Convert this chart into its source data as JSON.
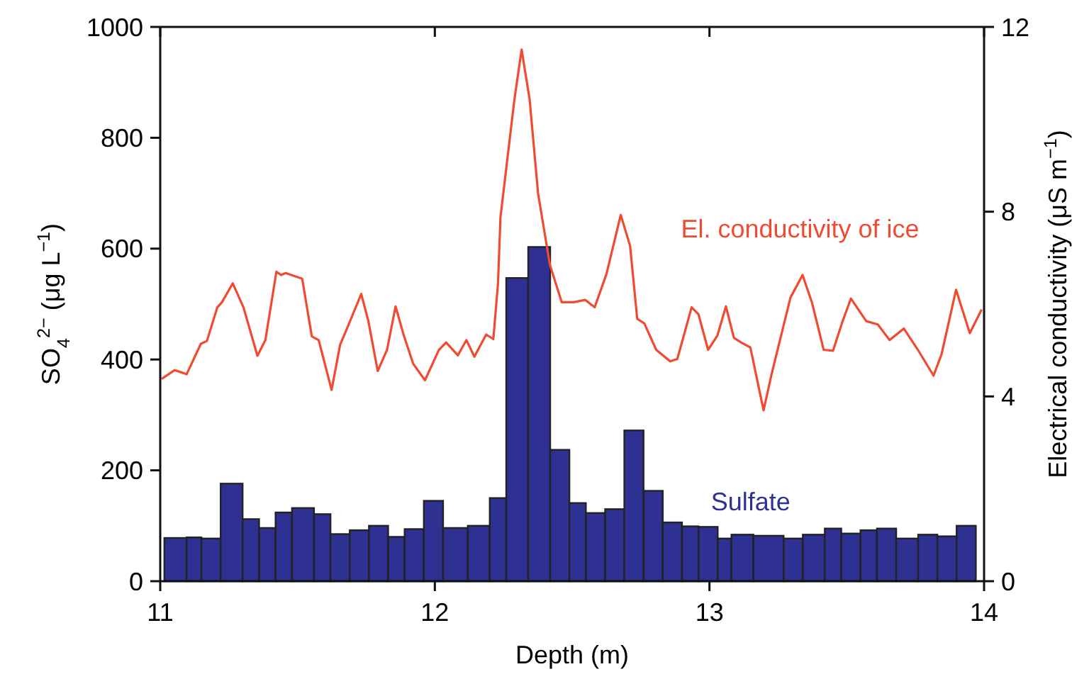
{
  "chart_data": {
    "type": "histogram",
    "xlabel": "Depth (m)",
    "ylabel": "SO$_{4}$$^{2−}$ (μg L$^{−1}$)",
    "y2label": "Electrical conductivity (μS m$^{−1}$)",
    "xlim": [
      11,
      14
    ],
    "xticks": [
      11,
      12,
      13,
      14
    ],
    "ylim": [
      0,
      1000
    ],
    "yticks": [
      0,
      200,
      400,
      600,
      800,
      1000
    ],
    "y2lim": [
      0,
      12
    ],
    "y2ticks": [
      0,
      4,
      8,
      12
    ],
    "grid": false,
    "series": [
      {
        "name": "Sulfate",
        "color": "#2e3192",
        "bins": [
          11.015,
          11.096,
          11.15,
          11.22,
          11.3,
          11.36,
          11.42,
          11.48,
          11.56,
          11.62,
          11.69,
          11.76,
          11.83,
          11.89,
          11.96,
          12.03,
          12.12,
          12.2,
          12.26,
          12.34,
          12.42,
          12.49,
          12.55,
          12.62,
          12.69,
          12.76,
          12.83,
          12.9,
          12.96,
          13.03,
          13.08,
          13.16,
          13.27,
          13.34,
          13.42,
          13.48,
          13.55,
          13.61,
          13.68,
          13.76,
          13.83,
          13.9,
          13.97
        ],
        "values": [
          78,
          79,
          77,
          176,
          112,
          96,
          124,
          132,
          121,
          85,
          92,
          100,
          80,
          94,
          145,
          96,
          100,
          150,
          547,
          603,
          237,
          141,
          123,
          130,
          272,
          163,
          106,
          99,
          98,
          77,
          84,
          82,
          77,
          84,
          95,
          86,
          92,
          95,
          77,
          84,
          81,
          100
        ]
      },
      {
        "type": "line",
        "name": "El. conductivity of ice",
        "color": "#f04a30",
        "axis": "y2",
        "x": [
          11.005,
          11.053,
          11.096,
          11.148,
          11.17,
          11.208,
          11.225,
          11.264,
          11.303,
          11.354,
          11.383,
          11.423,
          11.44,
          11.457,
          11.517,
          11.552,
          11.577,
          11.624,
          11.655,
          11.68,
          11.732,
          11.758,
          11.792,
          11.826,
          11.857,
          11.887,
          11.921,
          11.964,
          12.015,
          12.041,
          12.084,
          12.115,
          12.144,
          12.187,
          12.213,
          12.23,
          12.239,
          12.29,
          12.316,
          12.345,
          12.376,
          12.419,
          12.462,
          12.505,
          12.548,
          12.582,
          12.625,
          12.677,
          12.711,
          12.737,
          12.763,
          12.806,
          12.857,
          12.883,
          12.935,
          12.96,
          12.995,
          13.029,
          13.06,
          13.089,
          13.115,
          13.149,
          13.197,
          13.227,
          13.261,
          13.295,
          13.339,
          13.373,
          13.416,
          13.45,
          13.485,
          13.515,
          13.571,
          13.613,
          13.656,
          13.708,
          13.759,
          13.816,
          13.845,
          13.898,
          13.948,
          13.991
        ],
        "values": [
          4.38,
          4.57,
          4.48,
          5.14,
          5.2,
          5.93,
          6.04,
          6.45,
          5.93,
          4.88,
          5.22,
          6.7,
          6.63,
          6.67,
          6.55,
          5.3,
          5.22,
          4.14,
          5.12,
          5.47,
          6.22,
          5.63,
          4.55,
          5.01,
          5.95,
          5.32,
          4.71,
          4.35,
          5.01,
          5.17,
          4.89,
          5.22,
          4.86,
          5.34,
          5.24,
          6.45,
          7.88,
          10.44,
          11.51,
          10.44,
          8.39,
          6.85,
          6.04,
          6.04,
          6.09,
          5.93,
          6.65,
          7.93,
          7.26,
          5.68,
          5.58,
          5.01,
          4.76,
          4.81,
          5.93,
          5.78,
          5.01,
          5.32,
          5.95,
          5.27,
          5.17,
          5.06,
          3.7,
          4.5,
          5.32,
          6.14,
          6.63,
          6.04,
          5.01,
          4.99,
          5.63,
          6.12,
          5.63,
          5.56,
          5.22,
          5.47,
          5.01,
          4.45,
          4.91,
          6.31,
          5.37,
          5.88
        ]
      }
    ]
  }
}
